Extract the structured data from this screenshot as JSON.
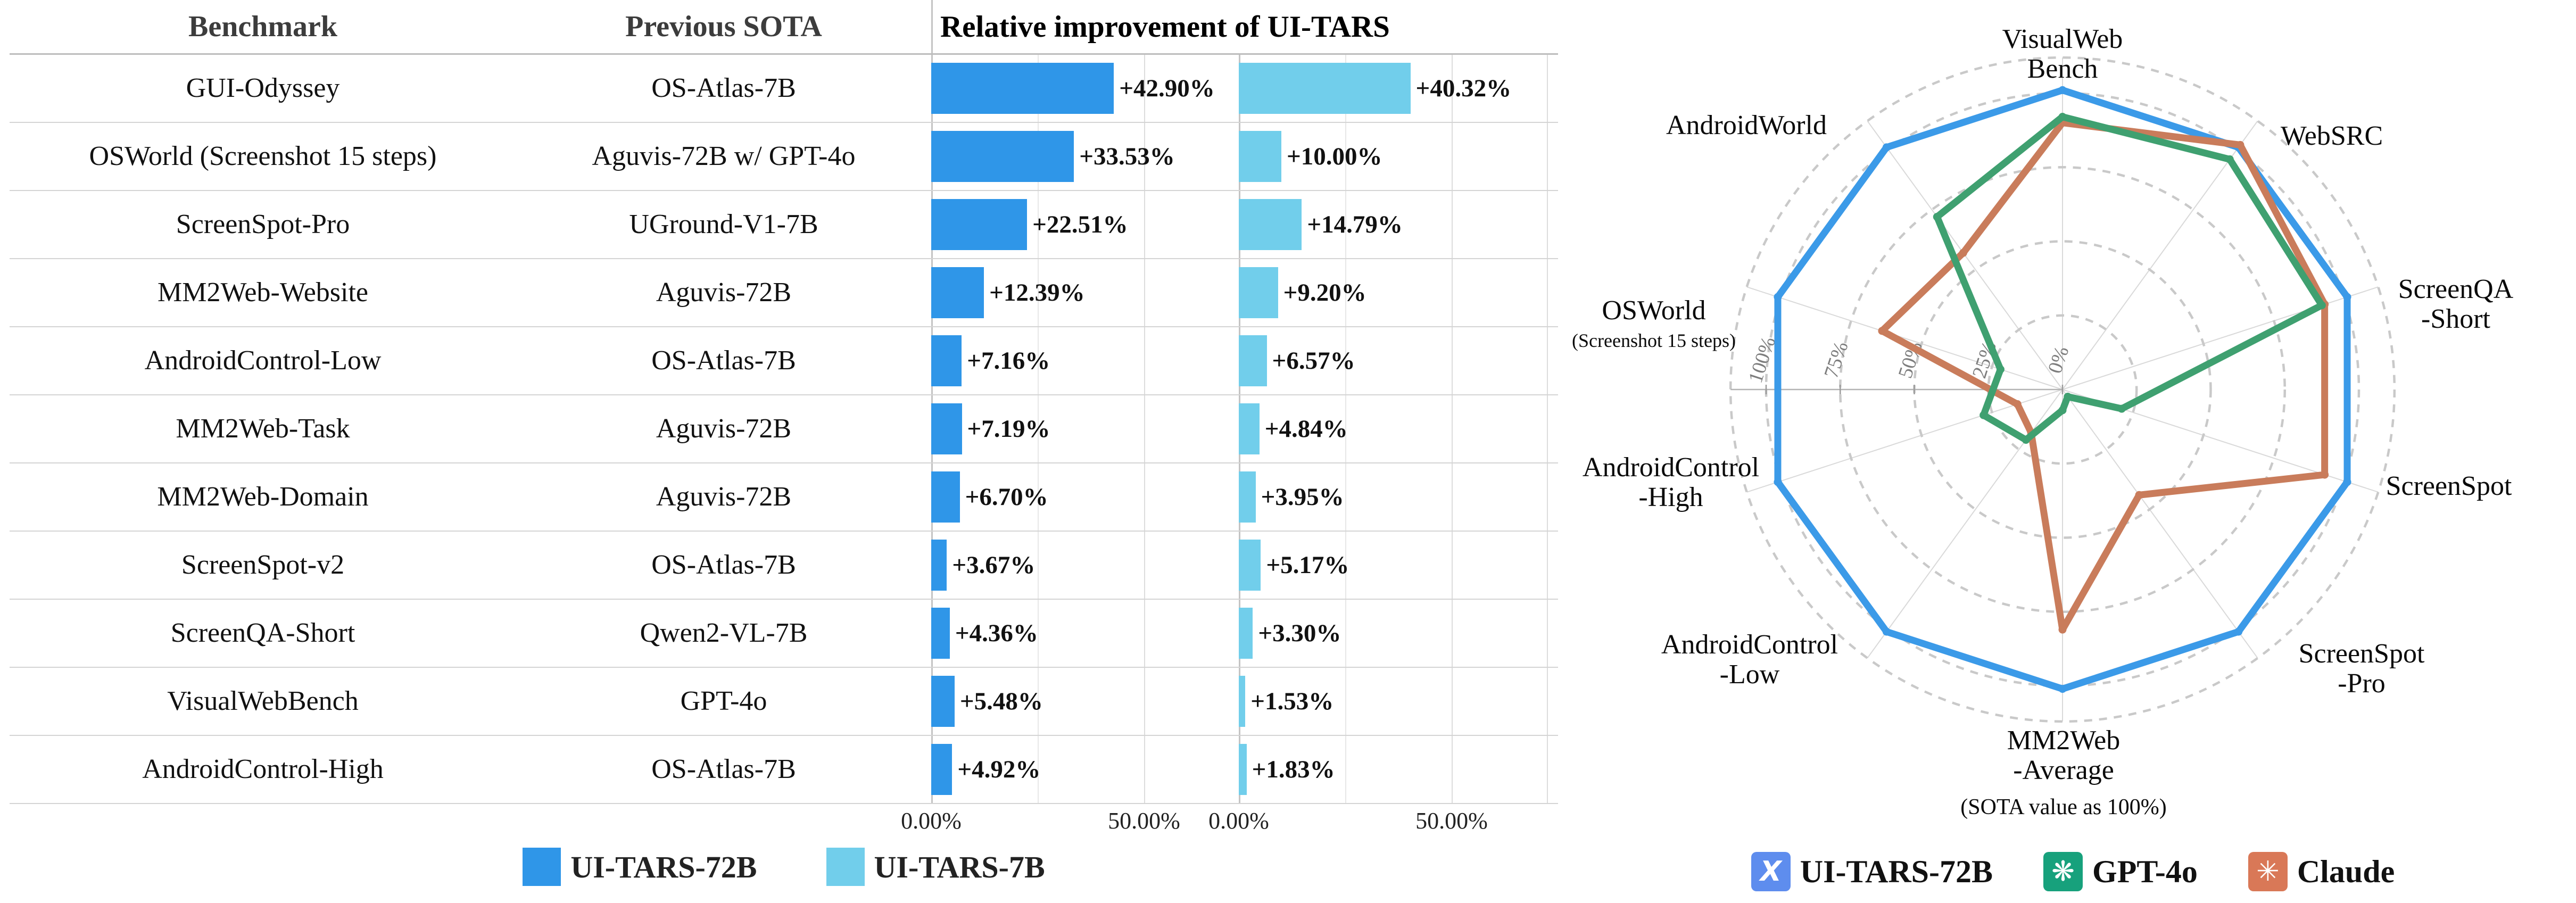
{
  "improvement_table": {
    "headers": {
      "benchmark": "Benchmark",
      "previous_sota": "Previous SOTA"
    }
  },
  "chart_data": [
    {
      "type": "bar",
      "title": "Relative improvement of UI-TARS",
      "orientation": "horizontal",
      "categories": [
        "GUI-Odyssey",
        "OSWorld (Screenshot 15 steps)",
        "ScreenSpot-Pro",
        "MM2Web-Website",
        "AndroidControl-Low",
        "MM2Web-Task",
        "MM2Web-Domain",
        "ScreenSpot-v2",
        "ScreenQA-Short",
        "VisualWebBench",
        "AndroidControl-High"
      ],
      "previous_sota": [
        "OS-Atlas-7B",
        "Aguvis-72B w/ GPT-4o",
        "UGround-V1-7B",
        "Aguvis-72B",
        "OS-Atlas-7B",
        "Aguvis-72B",
        "Aguvis-72B",
        "OS-Atlas-7B",
        "Qwen2-VL-7B",
        "GPT-4o",
        "OS-Atlas-7B"
      ],
      "series": [
        {
          "name": "UI-TARS-72B",
          "color": "#2F96E8",
          "values": [
            42.9,
            33.53,
            22.51,
            12.39,
            7.16,
            7.19,
            6.7,
            3.67,
            4.36,
            5.48,
            4.92
          ],
          "labels": [
            "+42.90%",
            "+33.53%",
            "+22.51%",
            "+12.39%",
            "+7.16%",
            "+7.19%",
            "+6.70%",
            "+3.67%",
            "+4.36%",
            "+5.48%",
            "+4.92%"
          ]
        },
        {
          "name": "UI-TARS-7B",
          "color": "#71CEEB",
          "values": [
            40.32,
            10.0,
            14.79,
            9.2,
            6.57,
            4.84,
            3.95,
            5.17,
            3.3,
            1.53,
            1.83
          ],
          "labels": [
            "+40.32%",
            "+10.00%",
            "+14.79%",
            "+9.20%",
            "+6.57%",
            "+4.84%",
            "+3.95%",
            "+5.17%",
            "+3.30%",
            "+1.53%",
            "+1.83%"
          ]
        }
      ],
      "x_ticks": [
        "0.00%",
        "50.00%"
      ],
      "x_tick_values": [
        0,
        50
      ],
      "xlim": [
        0,
        72.25
      ],
      "grid": "vertical"
    },
    {
      "type": "radar",
      "caption": "(SOTA value as 100%)",
      "axes": [
        {
          "lines": [
            "VisualWeb",
            "Bench"
          ]
        },
        {
          "lines": [
            "WebSRC"
          ]
        },
        {
          "lines": [
            "ScreenQA",
            "-Short"
          ]
        },
        {
          "lines": [
            "ScreenSpot"
          ]
        },
        {
          "lines": [
            "ScreenSpot",
            "-Pro"
          ]
        },
        {
          "lines": [
            "MM2Web",
            "-Average"
          ]
        },
        {
          "lines": [
            "AndroidControl",
            "-Low"
          ]
        },
        {
          "lines": [
            "AndroidControl",
            "-High"
          ]
        },
        {
          "lines": [
            "OSWorld"
          ],
          "sublabel": "(Screenshot 15 steps)"
        },
        {
          "lines": [
            "AndroidWorld"
          ]
        }
      ],
      "radial_ticks": [
        "0%",
        "25%",
        "50%",
        "75%",
        "100%"
      ],
      "radial_tick_values": [
        0,
        25,
        50,
        75,
        100
      ],
      "rlim": [
        0,
        112
      ],
      "series": [
        {
          "name": "UI-TARS-72B",
          "color": "#3B9AE8",
          "icon": "ui-tars-logo",
          "icon_glyph": "X",
          "swatch": "#5E8DEE",
          "values": [
            101,
            101,
            101,
            101,
            101,
            101,
            101,
            101,
            101,
            101
          ]
        },
        {
          "name": "Claude",
          "color": "#C97C5B",
          "icon": "anthropic-logo",
          "icon_glyph": "✳",
          "swatch": "#D97857",
          "values": [
            90,
            102,
            93,
            93,
            44,
            81,
            18,
            16,
            64,
            57
          ]
        },
        {
          "name": "GPT-4o",
          "color": "#3FA070",
          "icon": "openai-logo",
          "icon_glyph": "❋",
          "swatch": "#17A17C",
          "values": [
            92,
            96,
            92,
            21,
            3,
            7,
            21,
            28,
            22,
            72
          ]
        }
      ],
      "legend_order": [
        "UI-TARS-72B",
        "GPT-4o",
        "Claude"
      ]
    }
  ]
}
